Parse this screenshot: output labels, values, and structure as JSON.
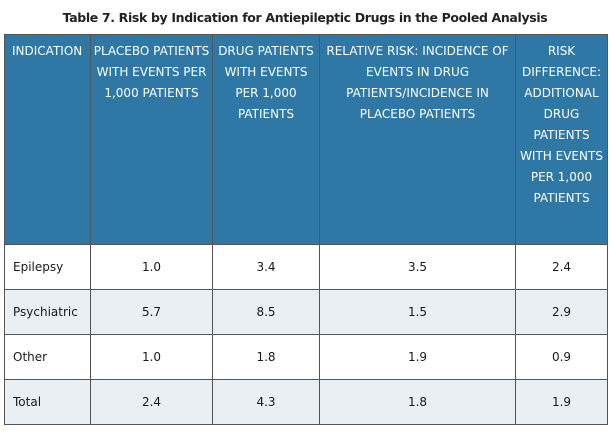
{
  "title": "Table 7. Risk by Indication for Antiepileptic Drugs in the Pooled Analysis",
  "columns": [
    "INDICATION",
    "PLACEBO PATIENTS WITH EVENTS PER 1,000 PATIENTS",
    "DRUG PATIENTS WITH EVENTS PER 1,000 PATIENTS",
    "RELATIVE RISK: INCIDENCE OF EVENTS IN DRUG PATIENTS/INCIDENCE IN PLACEBO PATIENTS",
    "RISK DIFFERENCE: ADDITIONAL DRUG PATIENTS WITH EVENTS PER 1,000 PATIENTS"
  ],
  "rows": [
    [
      "Epilepsy",
      "1.0",
      "3.4",
      "3.5",
      "2.4"
    ],
    [
      "Psychiatric",
      "5.7",
      "8.5",
      "1.5",
      "2.9"
    ],
    [
      "Other",
      "1.0",
      "1.8",
      "1.9",
      "0.9"
    ],
    [
      "Total",
      "2.4",
      "4.3",
      "1.8",
      "1.9"
    ]
  ]
}
